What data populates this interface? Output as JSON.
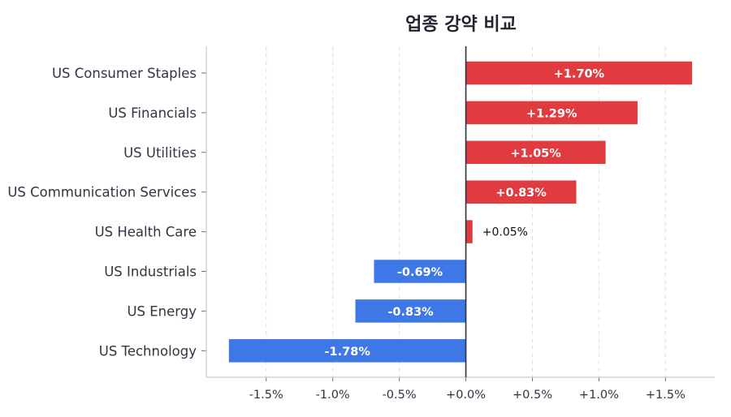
{
  "chart_data": {
    "type": "bar",
    "orientation": "horizontal",
    "title": "업종 강약 비교",
    "xlabel": "",
    "ylabel": "",
    "xlim": [
      -1.95,
      1.87
    ],
    "grid": "vertical dashed",
    "categories": [
      "US Consumer Staples",
      "US Financials",
      "US Utilities",
      "US Communication Services",
      "US Health Care",
      "US Industrials",
      "US Energy",
      "US Technology"
    ],
    "values": [
      1.7,
      1.29,
      1.05,
      0.83,
      0.05,
      -0.69,
      -0.83,
      -1.78
    ],
    "data_labels": [
      "+1.70%",
      "+1.29%",
      "+1.05%",
      "+0.83%",
      "+0.05%",
      "-0.69%",
      "-0.83%",
      "-1.78%"
    ],
    "x_ticks": [
      -1.5,
      -1.0,
      -0.5,
      0.0,
      0.5,
      1.0,
      1.5
    ],
    "x_tick_labels": [
      "-1.5%",
      "-1.0%",
      "-0.5%",
      "+0.0%",
      "+0.5%",
      "+1.0%",
      "+1.5%"
    ],
    "colors": {
      "positive": "#e03c3f",
      "negative": "#3e78e6",
      "axis": "#c8ccd4",
      "zero_line": "#2b3044",
      "grid": "#dcdfe5"
    }
  }
}
